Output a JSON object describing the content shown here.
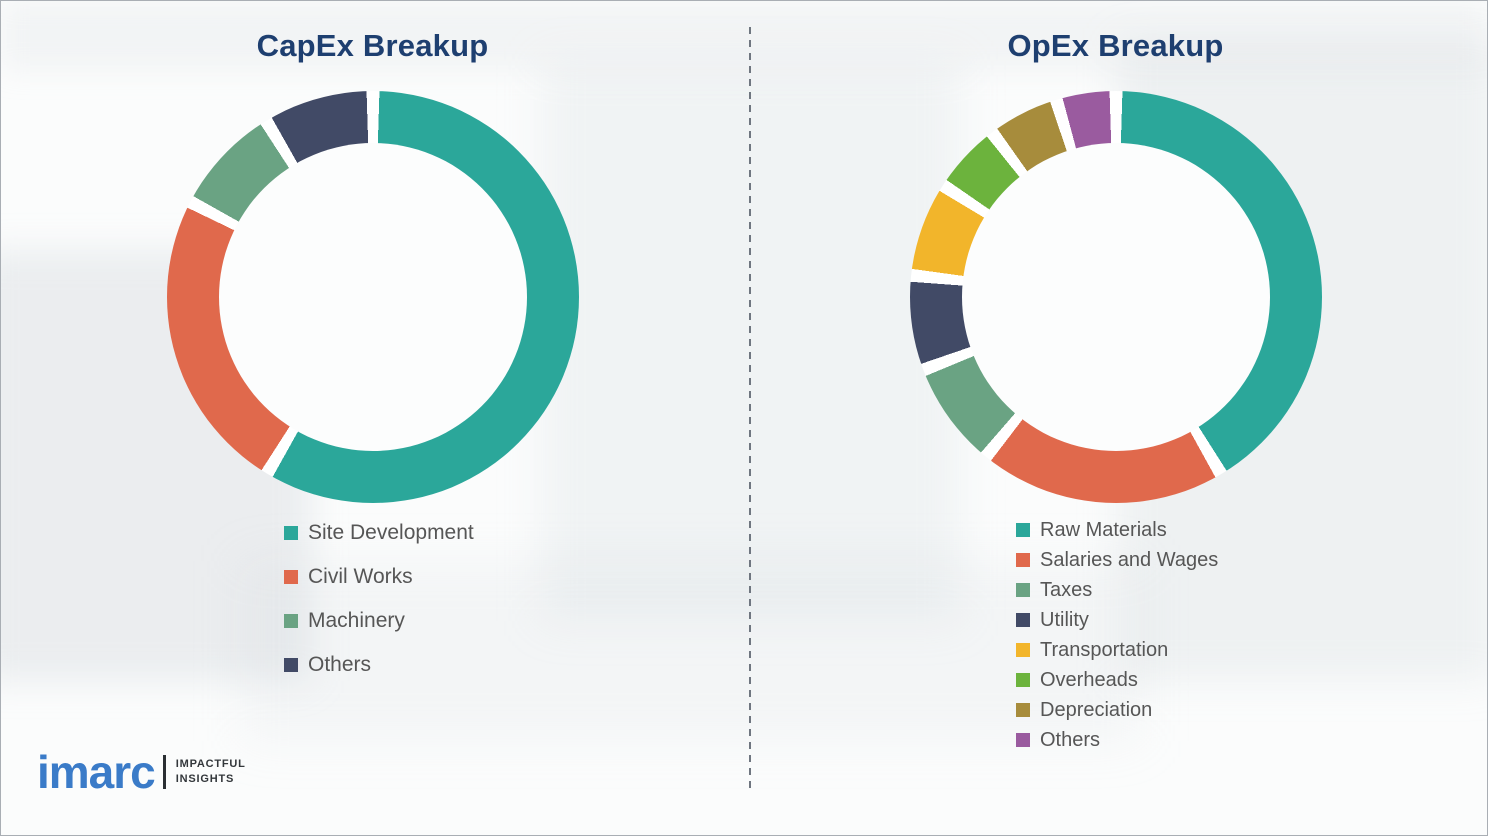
{
  "chart_data": [
    {
      "type": "donut",
      "title": "CapEx Breakup",
      "categories": [
        "Site Development",
        "Civil Works",
        "Machinery",
        "Others"
      ],
      "values": [
        60,
        24,
        8,
        8
      ],
      "colors": [
        "#2ba79a",
        "#e0694c",
        "#6aa383",
        "#414a66"
      ],
      "legend_position": "bottom-left",
      "start_angle_deg": 0,
      "direction": "clockwise",
      "hole_ratio": 0.75
    },
    {
      "type": "donut",
      "title": "OpEx Breakup",
      "categories": [
        "Raw Materials",
        "Salaries and Wages",
        "Taxes",
        "Utility",
        "Transportation",
        "Overheads",
        "Depreciation",
        "Others"
      ],
      "values": [
        44,
        20,
        8,
        7,
        7,
        5,
        5,
        4
      ],
      "colors": [
        "#2ba79a",
        "#e0694c",
        "#6aa383",
        "#414a66",
        "#f2b52b",
        "#6cb33d",
        "#a78c3c",
        "#9a5b9f"
      ],
      "legend_position": "bottom-left",
      "start_angle_deg": 0,
      "direction": "clockwise",
      "hole_ratio": 0.75
    }
  ],
  "logo": {
    "brand": "imarc",
    "tagline_line1": "IMPACTFUL",
    "tagline_line2": "INSIGHTS",
    "brand_color": "#3a7bc8"
  },
  "styles": {
    "title_color": "#1e3f70",
    "legend_text_color": "#565656",
    "divider_color": "#6f7680",
    "background_color": "#fbfcfc"
  }
}
